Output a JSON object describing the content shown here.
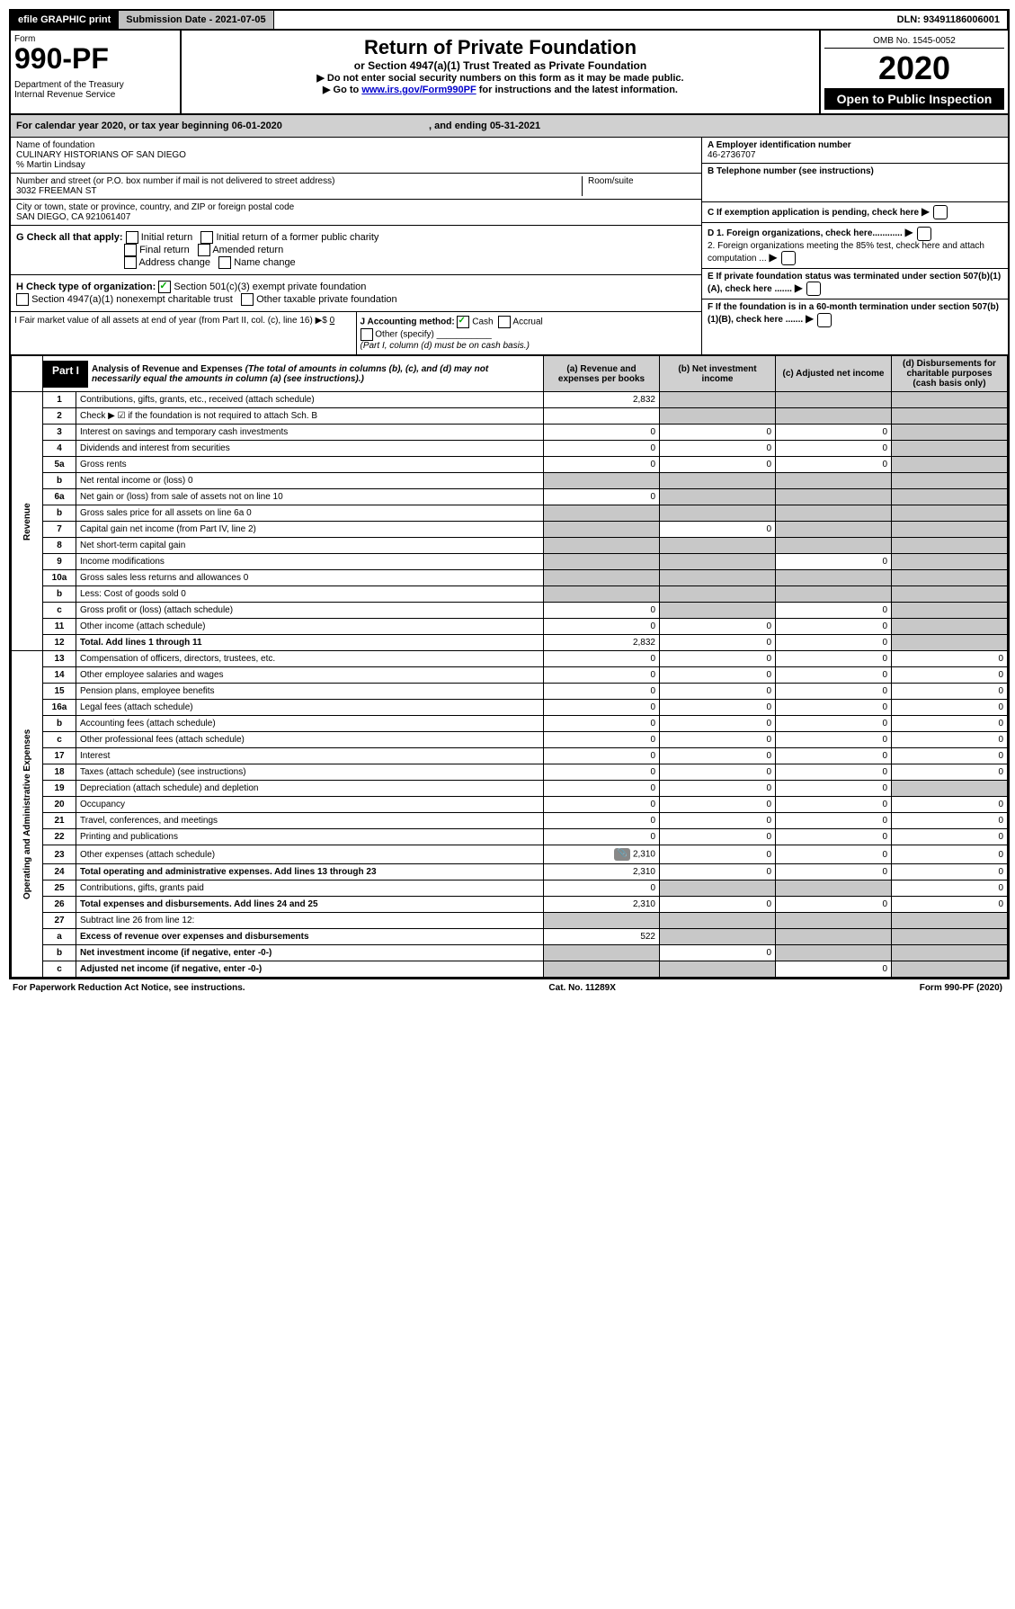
{
  "topbar": {
    "efile": "efile GRAPHIC print",
    "sub_date": "Submission Date - 2021-07-05",
    "dln": "DLN: 93491186006001"
  },
  "header": {
    "form_word": "Form",
    "form_number": "990-PF",
    "dept": "Department of the Treasury",
    "irs": "Internal Revenue Service",
    "title": "Return of Private Foundation",
    "subtitle": "or Section 4947(a)(1) Trust Treated as Private Foundation",
    "instr1": "▶ Do not enter social security numbers on this form as it may be made public.",
    "instr2_prefix": "▶ Go to ",
    "instr2_link": "www.irs.gov/Form990PF",
    "instr2_suffix": " for instructions and the latest information.",
    "omb": "OMB No. 1545-0052",
    "year": "2020",
    "open": "Open to Public Inspection"
  },
  "cal_year": {
    "text": "For calendar year 2020, or tax year beginning 06-01-2020",
    "ending": ", and ending 05-31-2021"
  },
  "name": {
    "label": "Name of foundation",
    "value": "CULINARY HISTORIANS OF SAN DIEGO",
    "care_of": "% Martin Lindsay"
  },
  "address": {
    "label": "Number and street (or P.O. box number if mail is not delivered to street address)",
    "value": "3032 FREEMAN ST",
    "room_label": "Room/suite"
  },
  "city": {
    "label": "City or town, state or province, country, and ZIP or foreign postal code",
    "value": "SAN DIEGO, CA  921061407"
  },
  "ein": {
    "label": "A Employer identification number",
    "value": "46-2736707"
  },
  "phone": {
    "label": "B Telephone number (see instructions)",
    "value": ""
  },
  "c_label": "C If exemption application is pending, check here",
  "d1_label": "D 1. Foreign organizations, check here............",
  "d2_label": "2. Foreign organizations meeting the 85% test, check here and attach computation ...",
  "e_label": "E If private foundation status was terminated under section 507(b)(1)(A), check here .......",
  "f_label": "F If the foundation is in a 60-month termination under section 507(b)(1)(B), check here .......",
  "g": {
    "label": "G Check all that apply:",
    "opts": [
      "Initial return",
      "Initial return of a former public charity",
      "Final return",
      "Amended return",
      "Address change",
      "Name change"
    ]
  },
  "h": {
    "label": "H Check type of organization:",
    "opt1": "Section 501(c)(3) exempt private foundation",
    "opt2": "Section 4947(a)(1) nonexempt charitable trust",
    "opt3": "Other taxable private foundation"
  },
  "i": {
    "label": "I Fair market value of all assets at end of year (from Part II, col. (c), line 16) ▶$",
    "value": "0"
  },
  "j": {
    "label": "J Accounting method:",
    "cash": "Cash",
    "accrual": "Accrual",
    "other": "Other (specify)",
    "note": "(Part I, column (d) must be on cash basis.)"
  },
  "part1": {
    "title": "Part I",
    "heading": "Analysis of Revenue and Expenses",
    "subtext": "(The total of amounts in columns (b), (c), and (d) may not necessarily equal the amounts in column (a) (see instructions).)",
    "col_a": "(a) Revenue and expenses per books",
    "col_b": "(b) Net investment income",
    "col_c": "(c) Adjusted net income",
    "col_d": "(d) Disbursements for charitable purposes (cash basis only)"
  },
  "side_labels": {
    "revenue": "Revenue",
    "expenses": "Operating and Administrative Expenses"
  },
  "rows": [
    {
      "n": "1",
      "d": "Contributions, gifts, grants, etc., received (attach schedule)",
      "a": "2,832",
      "b": "",
      "c": "",
      "dd": "",
      "sb": true,
      "sc": true,
      "sd": true
    },
    {
      "n": "2",
      "d": "Check ▶ ☑ if the foundation is not required to attach Sch. B",
      "a": "",
      "b": "",
      "c": "",
      "dd": "",
      "sb": true,
      "sc": true,
      "sd": true
    },
    {
      "n": "3",
      "d": "Interest on savings and temporary cash investments",
      "a": "0",
      "b": "0",
      "c": "0",
      "dd": "",
      "sd": true
    },
    {
      "n": "4",
      "d": "Dividends and interest from securities",
      "a": "0",
      "b": "0",
      "c": "0",
      "dd": "",
      "sd": true
    },
    {
      "n": "5a",
      "d": "Gross rents",
      "a": "0",
      "b": "0",
      "c": "0",
      "dd": "",
      "sd": true
    },
    {
      "n": "b",
      "d": "Net rental income or (loss)                                    0",
      "a": "",
      "b": "",
      "c": "",
      "dd": "",
      "sa": true,
      "sb": true,
      "sc": true,
      "sd": true
    },
    {
      "n": "6a",
      "d": "Net gain or (loss) from sale of assets not on line 10",
      "a": "0",
      "b": "",
      "c": "",
      "dd": "",
      "sb": true,
      "sc": true,
      "sd": true
    },
    {
      "n": "b",
      "d": "Gross sales price for all assets on line 6a                    0",
      "a": "",
      "b": "",
      "c": "",
      "dd": "",
      "sa": true,
      "sb": true,
      "sc": true,
      "sd": true
    },
    {
      "n": "7",
      "d": "Capital gain net income (from Part IV, line 2)",
      "a": "",
      "b": "0",
      "c": "",
      "dd": "",
      "sa": true,
      "sc": true,
      "sd": true
    },
    {
      "n": "8",
      "d": "Net short-term capital gain",
      "a": "",
      "b": "",
      "c": "",
      "dd": "",
      "sa": true,
      "sb": true,
      "sc": true,
      "sd": true
    },
    {
      "n": "9",
      "d": "Income modifications",
      "a": "",
      "b": "",
      "c": "0",
      "dd": "",
      "sa": true,
      "sb": true,
      "sd": true
    },
    {
      "n": "10a",
      "d": "Gross sales less returns and allowances                    0",
      "a": "",
      "b": "",
      "c": "",
      "dd": "",
      "sa": true,
      "sb": true,
      "sc": true,
      "sd": true
    },
    {
      "n": "b",
      "d": "Less: Cost of goods sold                                         0",
      "a": "",
      "b": "",
      "c": "",
      "dd": "",
      "sa": true,
      "sb": true,
      "sc": true,
      "sd": true
    },
    {
      "n": "c",
      "d": "Gross profit or (loss) (attach schedule)",
      "a": "0",
      "b": "",
      "c": "0",
      "dd": "",
      "sb": true,
      "sd": true
    },
    {
      "n": "11",
      "d": "Other income (attach schedule)",
      "a": "0",
      "b": "0",
      "c": "0",
      "dd": "",
      "sd": true
    },
    {
      "n": "12",
      "d": "Total. Add lines 1 through 11",
      "a": "2,832",
      "b": "0",
      "c": "0",
      "dd": "",
      "sd": true,
      "bold": true
    },
    {
      "n": "13",
      "d": "Compensation of officers, directors, trustees, etc.",
      "a": "0",
      "b": "0",
      "c": "0",
      "dd": "0"
    },
    {
      "n": "14",
      "d": "Other employee salaries and wages",
      "a": "0",
      "b": "0",
      "c": "0",
      "dd": "0"
    },
    {
      "n": "15",
      "d": "Pension plans, employee benefits",
      "a": "0",
      "b": "0",
      "c": "0",
      "dd": "0"
    },
    {
      "n": "16a",
      "d": "Legal fees (attach schedule)",
      "a": "0",
      "b": "0",
      "c": "0",
      "dd": "0"
    },
    {
      "n": "b",
      "d": "Accounting fees (attach schedule)",
      "a": "0",
      "b": "0",
      "c": "0",
      "dd": "0"
    },
    {
      "n": "c",
      "d": "Other professional fees (attach schedule)",
      "a": "0",
      "b": "0",
      "c": "0",
      "dd": "0"
    },
    {
      "n": "17",
      "d": "Interest",
      "a": "0",
      "b": "0",
      "c": "0",
      "dd": "0"
    },
    {
      "n": "18",
      "d": "Taxes (attach schedule) (see instructions)",
      "a": "0",
      "b": "0",
      "c": "0",
      "dd": "0"
    },
    {
      "n": "19",
      "d": "Depreciation (attach schedule) and depletion",
      "a": "0",
      "b": "0",
      "c": "0",
      "dd": "",
      "sd": true
    },
    {
      "n": "20",
      "d": "Occupancy",
      "a": "0",
      "b": "0",
      "c": "0",
      "dd": "0"
    },
    {
      "n": "21",
      "d": "Travel, conferences, and meetings",
      "a": "0",
      "b": "0",
      "c": "0",
      "dd": "0"
    },
    {
      "n": "22",
      "d": "Printing and publications",
      "a": "0",
      "b": "0",
      "c": "0",
      "dd": "0"
    },
    {
      "n": "23",
      "d": "Other expenses (attach schedule)",
      "a": "2,310",
      "b": "0",
      "c": "0",
      "dd": "0",
      "icon": true
    },
    {
      "n": "24",
      "d": "Total operating and administrative expenses. Add lines 13 through 23",
      "a": "2,310",
      "b": "0",
      "c": "0",
      "dd": "0",
      "bold": true
    },
    {
      "n": "25",
      "d": "Contributions, gifts, grants paid",
      "a": "0",
      "b": "",
      "c": "",
      "dd": "0",
      "sb": true,
      "sc": true
    },
    {
      "n": "26",
      "d": "Total expenses and disbursements. Add lines 24 and 25",
      "a": "2,310",
      "b": "0",
      "c": "0",
      "dd": "0",
      "bold": true
    },
    {
      "n": "27",
      "d": "Subtract line 26 from line 12:",
      "a": "",
      "b": "",
      "c": "",
      "dd": "",
      "sa": true,
      "sb": true,
      "sc": true,
      "sd": true
    },
    {
      "n": "a",
      "d": "Excess of revenue over expenses and disbursements",
      "a": "522",
      "b": "",
      "c": "",
      "dd": "",
      "sb": true,
      "sc": true,
      "sd": true,
      "bold": true
    },
    {
      "n": "b",
      "d": "Net investment income (if negative, enter -0-)",
      "a": "",
      "b": "0",
      "c": "",
      "dd": "",
      "sa": true,
      "sc": true,
      "sd": true,
      "bold": true
    },
    {
      "n": "c",
      "d": "Adjusted net income (if negative, enter -0-)",
      "a": "",
      "b": "",
      "c": "0",
      "dd": "",
      "sa": true,
      "sb": true,
      "sd": true,
      "bold": true
    }
  ],
  "footer": {
    "left": "For Paperwork Reduction Act Notice, see instructions.",
    "center": "Cat. No. 11289X",
    "right": "Form 990-PF (2020)"
  },
  "colors": {
    "black": "#000000",
    "shade": "#c8c8c8",
    "header_shade": "#d0d0d0",
    "link": "#0000cc",
    "check": "#00aa00"
  }
}
